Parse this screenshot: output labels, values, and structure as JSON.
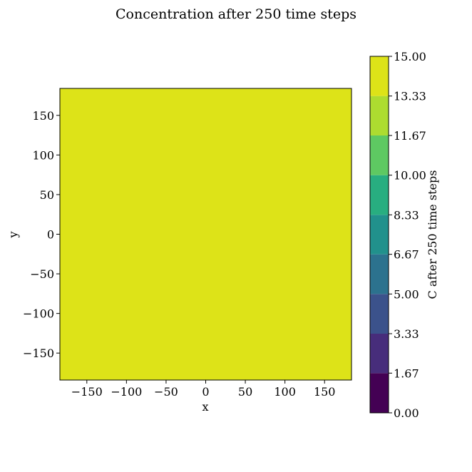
{
  "chart_data": {
    "type": "heatmap",
    "title": "Concentration after 250 time steps",
    "xlabel": "x",
    "ylabel": "y",
    "xlim": [
      -184,
      184
    ],
    "ylim": [
      -184,
      184
    ],
    "xticks": [
      -150,
      -100,
      -50,
      0,
      50,
      100,
      150
    ],
    "yticks": [
      -150,
      -100,
      -50,
      0,
      50,
      100,
      150
    ],
    "xtick_labels": [
      "−150",
      "−100",
      "−50",
      "0",
      "50",
      "100",
      "150"
    ],
    "ytick_labels": [
      "−150",
      "−100",
      "−50",
      "0",
      "50",
      "100",
      "150"
    ],
    "field_value": 15.0,
    "field_color": "#dde318",
    "colorbar": {
      "label": "C after 250 time steps",
      "range": [
        0,
        15
      ],
      "levels": [
        0.0,
        1.67,
        3.33,
        5.0,
        6.67,
        8.33,
        10.0,
        11.67,
        13.33,
        15.0
      ],
      "tick_labels": [
        "0.00",
        "1.67",
        "3.33",
        "5.00",
        "6.67",
        "8.33",
        "10.00",
        "11.67",
        "13.33",
        "15.00"
      ],
      "colors": [
        "#440154",
        "#472d7b",
        "#3b528b",
        "#2c728e",
        "#21918c",
        "#28ae80",
        "#5ec962",
        "#addc30",
        "#dde318"
      ]
    }
  }
}
